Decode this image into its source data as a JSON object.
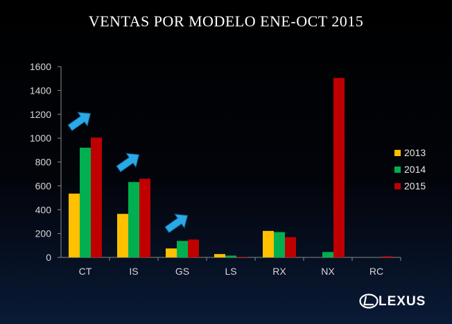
{
  "slide_title": "VENTAS POR MODELO ENE-OCT 2015",
  "brand": "LEXUS",
  "colors": {
    "background": "#000000",
    "series_2013": "#ffc000",
    "series_2014": "#00b050",
    "series_2015": "#c00000",
    "arrow": "#2aa9e6"
  },
  "chart_data": {
    "type": "bar",
    "title": "VENTAS POR MODELO ENE-OCT 2015",
    "xlabel": "",
    "ylabel": "",
    "ylim": [
      0,
      1600
    ],
    "yticks": [
      0,
      200,
      400,
      600,
      800,
      1000,
      1200,
      1400,
      1600
    ],
    "categories": [
      "CT",
      "IS",
      "GS",
      "LS",
      "RX",
      "NX",
      "RC"
    ],
    "series": [
      {
        "name": "2013",
        "color": "#ffc000",
        "values": [
          535,
          365,
          75,
          28,
          222,
          0,
          0
        ]
      },
      {
        "name": "2014",
        "color": "#00b050",
        "values": [
          920,
          632,
          138,
          15,
          212,
          45,
          0
        ]
      },
      {
        "name": "2015",
        "color": "#c00000",
        "values": [
          1005,
          660,
          150,
          5,
          170,
          1505,
          10
        ]
      }
    ],
    "legend": "right",
    "grid": false,
    "annotations": [
      {
        "type": "arrow",
        "category": "CT",
        "icon": "up-right-arrow-icon"
      },
      {
        "type": "arrow",
        "category": "IS",
        "icon": "up-right-arrow-icon"
      },
      {
        "type": "arrow",
        "category": "GS",
        "icon": "up-right-arrow-icon"
      }
    ]
  }
}
